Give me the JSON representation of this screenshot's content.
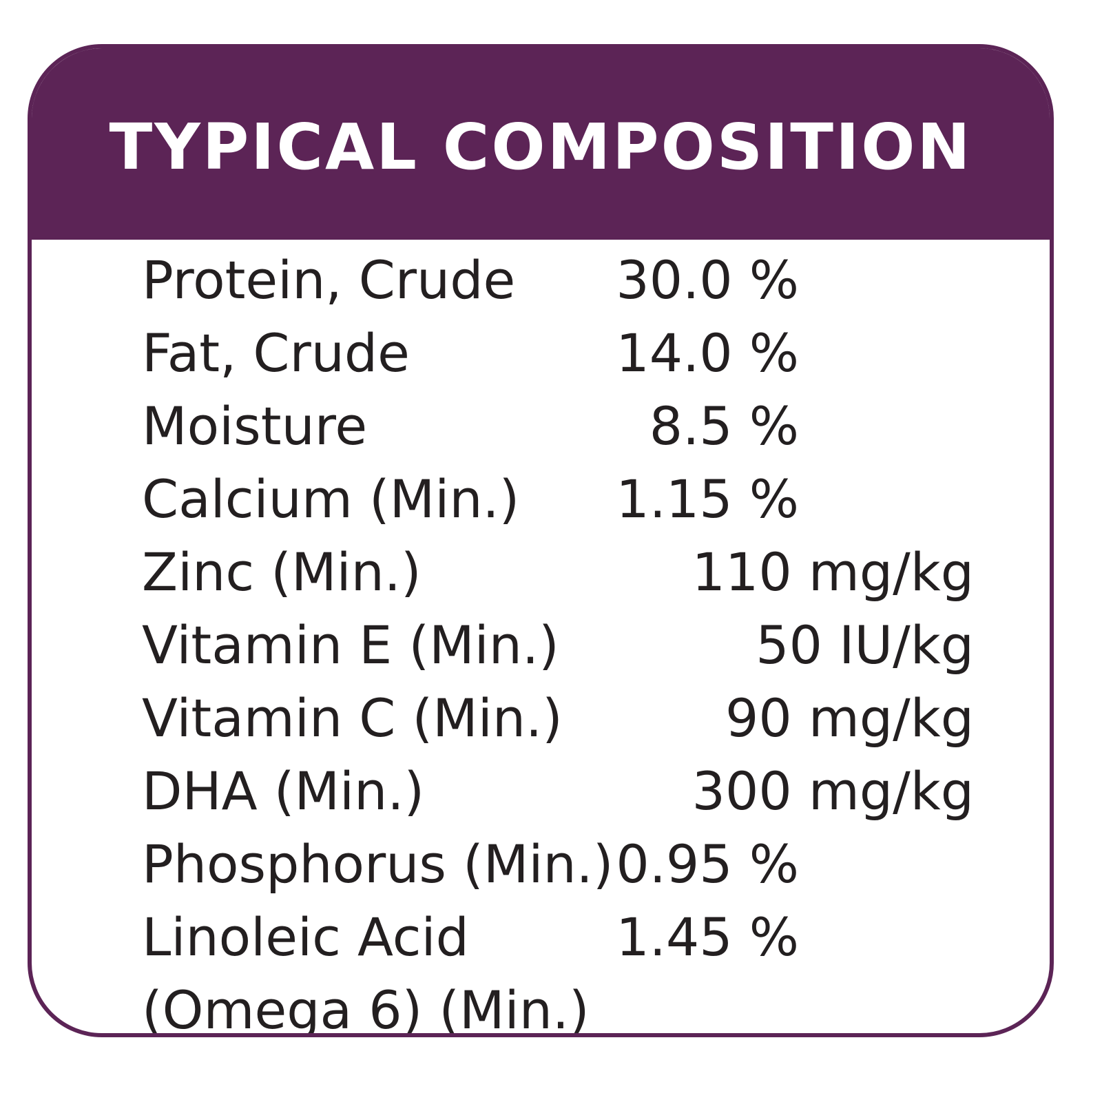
{
  "panel": {
    "title": "TYPICAL COMPOSITION",
    "colors": {
      "accent": "#5c2456",
      "text": "#231f20",
      "background": "#ffffff"
    },
    "rows": [
      {
        "label": "Protein, Crude",
        "value": "30.0 %"
      },
      {
        "label": "Fat, Crude",
        "value": "14.0 %"
      },
      {
        "label": "Moisture",
        "value": "8.5 %"
      },
      {
        "label": "Calcium (Min.)",
        "value": "1.15 %"
      },
      {
        "label": "Zinc (Min.)",
        "value": "110 mg/kg"
      },
      {
        "label": "Vitamin E (Min.)",
        "value": "50 IU/kg"
      },
      {
        "label": "Vitamin C (Min.)",
        "value": "90 mg/kg"
      },
      {
        "label": "DHA (Min.)",
        "value": "300 mg/kg"
      },
      {
        "label": "Phosphorus (Min.)",
        "value": "0.95 %"
      },
      {
        "label": "Linoleic Acid",
        "value": "1.45 %"
      },
      {
        "label": "(Omega 6) (Min.)",
        "value": ""
      }
    ]
  }
}
